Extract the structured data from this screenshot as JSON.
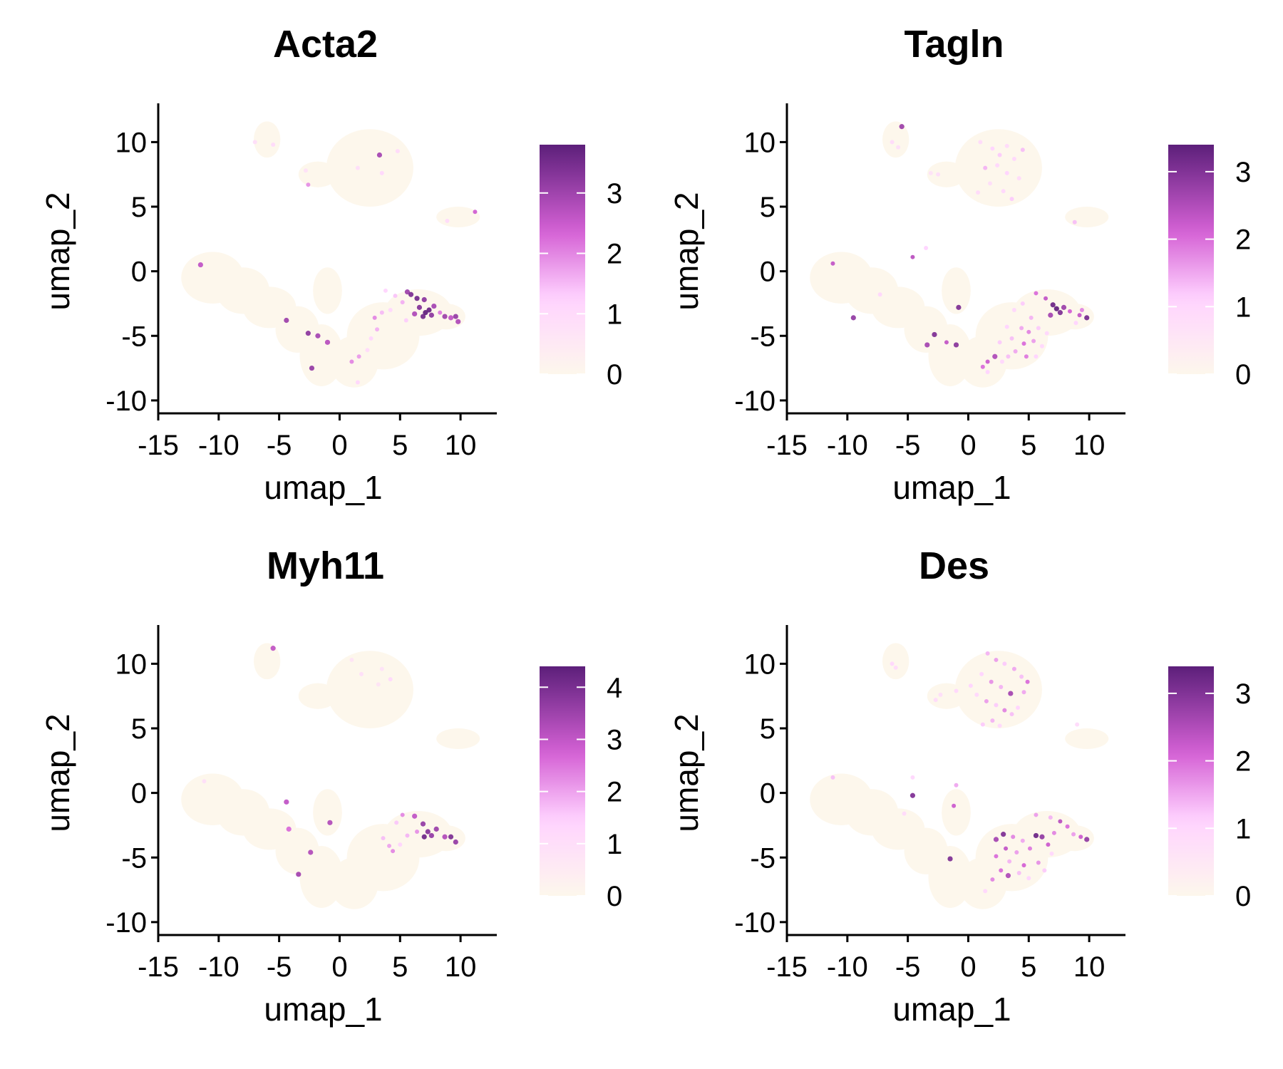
{
  "colors": {
    "background_cells": "#fdf7ec",
    "low": "#fdf7ec",
    "mid_low": "#ffd3ff",
    "mid": "#d561d5",
    "high": "#5c1f7a",
    "axis": "#000000"
  },
  "chart_data": [
    {
      "type": "scatter",
      "title": "Acta2",
      "xlabel": "umap_1",
      "ylabel": "umap_2",
      "xlim": [
        -15,
        13
      ],
      "ylim": [
        -11,
        13
      ],
      "xticks": [
        "-15",
        "-10",
        "-5",
        "0",
        "5",
        "10"
      ],
      "yticks": [
        "-10",
        "-5",
        "0",
        "5",
        "10"
      ],
      "legend": {
        "min": 0,
        "max": 3.8,
        "ticks": [
          "0",
          "1",
          "2",
          "3"
        ],
        "placement": "right"
      },
      "points": [
        {
          "x": -7.0,
          "y": 10.0,
          "v": 0.9
        },
        {
          "x": -5.5,
          "y": 9.8,
          "v": 1.0
        },
        {
          "x": 3.3,
          "y": 9.0,
          "v": 2.9
        },
        {
          "x": 4.8,
          "y": 9.3,
          "v": 1.0
        },
        {
          "x": 1.5,
          "y": 8.0,
          "v": 0.9
        },
        {
          "x": 3.5,
          "y": 7.6,
          "v": 1.1
        },
        {
          "x": -2.8,
          "y": 7.8,
          "v": 0.8
        },
        {
          "x": -2.6,
          "y": 6.7,
          "v": 1.9
        },
        {
          "x": 8.9,
          "y": 3.9,
          "v": 1.0
        },
        {
          "x": 11.2,
          "y": 4.6,
          "v": 2.4
        },
        {
          "x": -11.5,
          "y": 0.5,
          "v": 2.6
        },
        {
          "x": 3.8,
          "y": -1.5,
          "v": 1.2
        },
        {
          "x": 4.6,
          "y": -1.9,
          "v": 1.4
        },
        {
          "x": 5.6,
          "y": -1.6,
          "v": 3.0
        },
        {
          "x": 5.9,
          "y": -1.8,
          "v": 3.4
        },
        {
          "x": 6.4,
          "y": -2.1,
          "v": 3.5
        },
        {
          "x": 7.0,
          "y": -2.2,
          "v": 3.2
        },
        {
          "x": 6.6,
          "y": -2.8,
          "v": 3.3
        },
        {
          "x": 7.1,
          "y": -3.2,
          "v": 3.7
        },
        {
          "x": 7.4,
          "y": -3.0,
          "v": 3.6
        },
        {
          "x": 6.9,
          "y": -3.5,
          "v": 3.5
        },
        {
          "x": 7.6,
          "y": -3.4,
          "v": 3.2
        },
        {
          "x": 6.2,
          "y": -3.3,
          "v": 2.8
        },
        {
          "x": 7.8,
          "y": -2.7,
          "v": 2.9
        },
        {
          "x": 8.3,
          "y": -3.2,
          "v": 2.1
        },
        {
          "x": 8.7,
          "y": -3.5,
          "v": 3.0
        },
        {
          "x": 9.2,
          "y": -3.6,
          "v": 2.6
        },
        {
          "x": 9.6,
          "y": -3.5,
          "v": 3.1
        },
        {
          "x": 9.8,
          "y": -3.9,
          "v": 2.8
        },
        {
          "x": 5.2,
          "y": -2.4,
          "v": 1.6
        },
        {
          "x": 5.5,
          "y": -3.8,
          "v": 1.3
        },
        {
          "x": 4.2,
          "y": -3.0,
          "v": 1.1
        },
        {
          "x": 3.5,
          "y": -3.2,
          "v": 1.5
        },
        {
          "x": 2.9,
          "y": -3.6,
          "v": 2.0
        },
        {
          "x": 3.1,
          "y": -4.5,
          "v": 1.6
        },
        {
          "x": 2.6,
          "y": -5.2,
          "v": 1.2
        },
        {
          "x": 1.6,
          "y": -6.6,
          "v": 1.8
        },
        {
          "x": 1.0,
          "y": -7.0,
          "v": 2.0
        },
        {
          "x": 1.5,
          "y": -8.6,
          "v": 1.1
        },
        {
          "x": 2.3,
          "y": -6.1,
          "v": 1.0
        },
        {
          "x": -4.4,
          "y": -3.8,
          "v": 3.0
        },
        {
          "x": -2.6,
          "y": -4.8,
          "v": 3.2
        },
        {
          "x": -1.8,
          "y": -5.0,
          "v": 2.9
        },
        {
          "x": -1.0,
          "y": -5.5,
          "v": 2.7
        },
        {
          "x": -2.3,
          "y": -7.5,
          "v": 3.1
        }
      ]
    },
    {
      "type": "scatter",
      "title": "Tagln",
      "xlabel": "umap_1",
      "ylabel": "umap_2",
      "xlim": [
        -15,
        13
      ],
      "ylim": [
        -11,
        13
      ],
      "xticks": [
        "-15",
        "-10",
        "-5",
        "0",
        "5",
        "10"
      ],
      "yticks": [
        "-10",
        "-5",
        "0",
        "5",
        "10"
      ],
      "legend": {
        "min": 0,
        "max": 3.4,
        "ticks": [
          "0",
          "1",
          "2",
          "3"
        ],
        "placement": "right"
      },
      "points": [
        {
          "x": -5.5,
          "y": 11.2,
          "v": 2.7
        },
        {
          "x": -6.3,
          "y": 10.0,
          "v": 0.9
        },
        {
          "x": -5.8,
          "y": 9.6,
          "v": 0.8
        },
        {
          "x": 1.0,
          "y": 10.0,
          "v": 0.9
        },
        {
          "x": 2.0,
          "y": 9.5,
          "v": 1.1
        },
        {
          "x": 2.6,
          "y": 9.0,
          "v": 1.2
        },
        {
          "x": 3.2,
          "y": 9.7,
          "v": 0.9
        },
        {
          "x": 3.8,
          "y": 8.7,
          "v": 1.0
        },
        {
          "x": 4.5,
          "y": 9.4,
          "v": 1.3
        },
        {
          "x": 1.4,
          "y": 8.0,
          "v": 1.4
        },
        {
          "x": 2.4,
          "y": 8.2,
          "v": 1.0
        },
        {
          "x": 3.2,
          "y": 7.6,
          "v": 1.1
        },
        {
          "x": 4.2,
          "y": 7.2,
          "v": 0.9
        },
        {
          "x": 1.8,
          "y": 6.8,
          "v": 0.8
        },
        {
          "x": 2.9,
          "y": 6.2,
          "v": 1.0
        },
        {
          "x": 3.6,
          "y": 5.6,
          "v": 1.2
        },
        {
          "x": 0.8,
          "y": 6.1,
          "v": 0.9
        },
        {
          "x": -2.5,
          "y": 7.5,
          "v": 0.8
        },
        {
          "x": -3.1,
          "y": 7.6,
          "v": 0.7
        },
        {
          "x": 8.8,
          "y": 3.8,
          "v": 1.3
        },
        {
          "x": -11.2,
          "y": 0.6,
          "v": 2.3
        },
        {
          "x": -4.6,
          "y": 1.1,
          "v": 2.4
        },
        {
          "x": -3.5,
          "y": 1.8,
          "v": 1.1
        },
        {
          "x": -7.3,
          "y": -1.8,
          "v": 1.0
        },
        {
          "x": -9.5,
          "y": -3.6,
          "v": 2.8
        },
        {
          "x": -0.8,
          "y": -2.8,
          "v": 3.0
        },
        {
          "x": -2.8,
          "y": -4.9,
          "v": 3.0
        },
        {
          "x": -3.4,
          "y": -5.7,
          "v": 2.6
        },
        {
          "x": -1.8,
          "y": -5.5,
          "v": 2.3
        },
        {
          "x": -1.0,
          "y": -5.7,
          "v": 2.9
        },
        {
          "x": 5.6,
          "y": -1.7,
          "v": 2.0
        },
        {
          "x": 6.4,
          "y": -2.1,
          "v": 2.3
        },
        {
          "x": 7.0,
          "y": -2.6,
          "v": 3.2
        },
        {
          "x": 7.3,
          "y": -2.9,
          "v": 3.3
        },
        {
          "x": 7.6,
          "y": -3.2,
          "v": 3.0
        },
        {
          "x": 6.8,
          "y": -3.4,
          "v": 2.6
        },
        {
          "x": 7.9,
          "y": -2.8,
          "v": 2.7
        },
        {
          "x": 8.4,
          "y": -3.1,
          "v": 2.1
        },
        {
          "x": 9.2,
          "y": -3.4,
          "v": 2.3
        },
        {
          "x": 9.8,
          "y": -3.6,
          "v": 3.1
        },
        {
          "x": 9.4,
          "y": -3.0,
          "v": 1.8
        },
        {
          "x": 8.9,
          "y": -4.0,
          "v": 1.1
        },
        {
          "x": 4.5,
          "y": -2.5,
          "v": 1.2
        },
        {
          "x": 3.8,
          "y": -3.0,
          "v": 1.0
        },
        {
          "x": 5.2,
          "y": -3.6,
          "v": 1.4
        },
        {
          "x": 4.4,
          "y": -4.4,
          "v": 1.5
        },
        {
          "x": 5.0,
          "y": -4.7,
          "v": 1.8
        },
        {
          "x": 5.8,
          "y": -4.4,
          "v": 1.2
        },
        {
          "x": 6.5,
          "y": -4.8,
          "v": 1.0
        },
        {
          "x": 3.2,
          "y": -4.3,
          "v": 1.1
        },
        {
          "x": 3.6,
          "y": -5.2,
          "v": 1.3
        },
        {
          "x": 4.6,
          "y": -5.6,
          "v": 2.0
        },
        {
          "x": 5.4,
          "y": -5.4,
          "v": 1.6
        },
        {
          "x": 2.6,
          "y": -5.5,
          "v": 1.2
        },
        {
          "x": 3.9,
          "y": -6.2,
          "v": 1.5
        },
        {
          "x": 4.8,
          "y": -6.6,
          "v": 1.9
        },
        {
          "x": 5.6,
          "y": -6.6,
          "v": 1.1
        },
        {
          "x": 2.2,
          "y": -6.6,
          "v": 2.5
        },
        {
          "x": 1.6,
          "y": -7.0,
          "v": 2.2
        },
        {
          "x": 1.2,
          "y": -7.4,
          "v": 2.0
        },
        {
          "x": 1.6,
          "y": -7.8,
          "v": 1.1
        },
        {
          "x": 2.8,
          "y": -7.0,
          "v": 1.0
        },
        {
          "x": 3.3,
          "y": -6.6,
          "v": 1.3
        },
        {
          "x": 6.1,
          "y": -5.8,
          "v": 1.0
        }
      ]
    },
    {
      "type": "scatter",
      "title": "Myh11",
      "xlabel": "umap_1",
      "ylabel": "umap_2",
      "xlim": [
        -15,
        13
      ],
      "ylim": [
        -11,
        13
      ],
      "xticks": [
        "-15",
        "-10",
        "-5",
        "0",
        "5",
        "10"
      ],
      "yticks": [
        "-10",
        "-5",
        "0",
        "5",
        "10"
      ],
      "legend": {
        "min": 0,
        "max": 4.4,
        "ticks": [
          "0",
          "1",
          "2",
          "3",
          "4"
        ],
        "placement": "right"
      },
      "points": [
        {
          "x": -5.5,
          "y": 11.2,
          "v": 3.0
        },
        {
          "x": 1.0,
          "y": 10.3,
          "v": 0.8
        },
        {
          "x": 1.8,
          "y": 9.2,
          "v": 1.0
        },
        {
          "x": 3.5,
          "y": 9.6,
          "v": 0.9
        },
        {
          "x": 4.2,
          "y": 8.8,
          "v": 1.2
        },
        {
          "x": 3.2,
          "y": 8.4,
          "v": 0.8
        },
        {
          "x": -11.2,
          "y": 0.9,
          "v": 1.0
        },
        {
          "x": -4.4,
          "y": -0.7,
          "v": 3.0
        },
        {
          "x": -0.8,
          "y": -2.3,
          "v": 3.2
        },
        {
          "x": -4.2,
          "y": -2.8,
          "v": 2.6
        },
        {
          "x": -2.4,
          "y": -4.6,
          "v": 3.2
        },
        {
          "x": -3.4,
          "y": -6.3,
          "v": 3.4
        },
        {
          "x": 5.2,
          "y": -1.7,
          "v": 2.3
        },
        {
          "x": 6.2,
          "y": -1.8,
          "v": 3.0
        },
        {
          "x": 6.9,
          "y": -2.4,
          "v": 3.6
        },
        {
          "x": 7.3,
          "y": -3.0,
          "v": 3.8
        },
        {
          "x": 7.0,
          "y": -3.4,
          "v": 4.1
        },
        {
          "x": 7.6,
          "y": -3.3,
          "v": 3.6
        },
        {
          "x": 8.0,
          "y": -2.8,
          "v": 3.5
        },
        {
          "x": 8.7,
          "y": -3.4,
          "v": 3.2
        },
        {
          "x": 9.2,
          "y": -3.4,
          "v": 3.9
        },
        {
          "x": 9.6,
          "y": -3.8,
          "v": 3.6
        },
        {
          "x": 6.4,
          "y": -3.0,
          "v": 2.2
        },
        {
          "x": 5.6,
          "y": -3.3,
          "v": 1.8
        },
        {
          "x": 4.7,
          "y": -2.3,
          "v": 1.6
        },
        {
          "x": 3.6,
          "y": -3.5,
          "v": 1.7
        },
        {
          "x": 4.1,
          "y": -4.1,
          "v": 2.0
        },
        {
          "x": 4.4,
          "y": -4.5,
          "v": 2.3
        },
        {
          "x": 5.0,
          "y": -4.0,
          "v": 1.4
        }
      ]
    },
    {
      "type": "scatter",
      "title": "Des",
      "xlabel": "umap_1",
      "ylabel": "umap_2",
      "xlim": [
        -15,
        13
      ],
      "ylim": [
        -11,
        13
      ],
      "xticks": [
        "-15",
        "-10",
        "-5",
        "0",
        "5",
        "10"
      ],
      "yticks": [
        "-10",
        "-5",
        "0",
        "5",
        "10"
      ],
      "legend": {
        "min": 0,
        "max": 3.4,
        "ticks": [
          "0",
          "1",
          "2",
          "3"
        ],
        "placement": "right"
      },
      "points": [
        {
          "x": -6.3,
          "y": 10.0,
          "v": 1.0
        },
        {
          "x": -6.0,
          "y": 9.7,
          "v": 0.9
        },
        {
          "x": 1.6,
          "y": 10.8,
          "v": 1.4
        },
        {
          "x": 2.3,
          "y": 10.3,
          "v": 1.6
        },
        {
          "x": 3.0,
          "y": 10.0,
          "v": 1.2
        },
        {
          "x": 3.8,
          "y": 9.6,
          "v": 1.5
        },
        {
          "x": 4.4,
          "y": 9.0,
          "v": 1.3
        },
        {
          "x": 4.9,
          "y": 8.6,
          "v": 2.0
        },
        {
          "x": 1.1,
          "y": 9.2,
          "v": 1.1
        },
        {
          "x": 1.9,
          "y": 8.6,
          "v": 1.7
        },
        {
          "x": 2.7,
          "y": 8.2,
          "v": 1.4
        },
        {
          "x": 3.5,
          "y": 7.7,
          "v": 2.6
        },
        {
          "x": 4.6,
          "y": 7.8,
          "v": 1.5
        },
        {
          "x": 0.7,
          "y": 7.6,
          "v": 1.0
        },
        {
          "x": 1.5,
          "y": 7.1,
          "v": 1.6
        },
        {
          "x": 2.3,
          "y": 6.8,
          "v": 1.2
        },
        {
          "x": 3.0,
          "y": 6.4,
          "v": 1.8
        },
        {
          "x": 3.6,
          "y": 6.1,
          "v": 1.3
        },
        {
          "x": 4.1,
          "y": 6.6,
          "v": 1.1
        },
        {
          "x": 2.0,
          "y": 5.6,
          "v": 1.4
        },
        {
          "x": 1.2,
          "y": 5.3,
          "v": 1.2
        },
        {
          "x": 2.6,
          "y": 5.2,
          "v": 1.0
        },
        {
          "x": -1.0,
          "y": 7.9,
          "v": 1.0
        },
        {
          "x": -2.3,
          "y": 7.6,
          "v": 0.8
        },
        {
          "x": -2.7,
          "y": 7.2,
          "v": 0.9
        },
        {
          "x": 0.2,
          "y": 8.3,
          "v": 1.1
        },
        {
          "x": 9.0,
          "y": 5.3,
          "v": 0.9
        },
        {
          "x": -11.2,
          "y": 1.2,
          "v": 1.3
        },
        {
          "x": -4.6,
          "y": 1.2,
          "v": 1.0
        },
        {
          "x": -4.6,
          "y": -0.2,
          "v": 3.0
        },
        {
          "x": -1.0,
          "y": 0.6,
          "v": 1.5
        },
        {
          "x": -1.2,
          "y": -1.0,
          "v": 2.2
        },
        {
          "x": -5.3,
          "y": -1.6,
          "v": 0.9
        },
        {
          "x": -1.5,
          "y": -5.1,
          "v": 3.0
        },
        {
          "x": 5.6,
          "y": -1.7,
          "v": 1.6
        },
        {
          "x": 6.8,
          "y": -1.9,
          "v": 1.4
        },
        {
          "x": 7.6,
          "y": -2.2,
          "v": 2.4
        },
        {
          "x": 8.2,
          "y": -2.6,
          "v": 2.0
        },
        {
          "x": 9.3,
          "y": -3.4,
          "v": 2.2
        },
        {
          "x": 9.8,
          "y": -3.6,
          "v": 2.8
        },
        {
          "x": 8.7,
          "y": -3.2,
          "v": 1.6
        },
        {
          "x": 2.9,
          "y": -3.2,
          "v": 3.0
        },
        {
          "x": 2.3,
          "y": -3.6,
          "v": 2.6
        },
        {
          "x": 3.7,
          "y": -3.4,
          "v": 1.8
        },
        {
          "x": 4.5,
          "y": -3.7,
          "v": 1.5
        },
        {
          "x": 5.6,
          "y": -3.3,
          "v": 3.2
        },
        {
          "x": 6.1,
          "y": -3.4,
          "v": 2.8
        },
        {
          "x": 6.6,
          "y": -4.0,
          "v": 2.2
        },
        {
          "x": 5.1,
          "y": -4.3,
          "v": 1.9
        },
        {
          "x": 4.0,
          "y": -4.6,
          "v": 1.6
        },
        {
          "x": 3.1,
          "y": -4.3,
          "v": 2.3
        },
        {
          "x": 2.3,
          "y": -4.9,
          "v": 2.0
        },
        {
          "x": 3.4,
          "y": -5.3,
          "v": 1.4
        },
        {
          "x": 4.6,
          "y": -5.6,
          "v": 2.1
        },
        {
          "x": 5.8,
          "y": -5.4,
          "v": 1.7
        },
        {
          "x": 6.3,
          "y": -6.0,
          "v": 1.2
        },
        {
          "x": 2.7,
          "y": -6.0,
          "v": 2.0
        },
        {
          "x": 3.3,
          "y": -6.4,
          "v": 2.5
        },
        {
          "x": 4.2,
          "y": -6.2,
          "v": 1.3
        },
        {
          "x": 5.0,
          "y": -6.6,
          "v": 1.1
        },
        {
          "x": 2.0,
          "y": -6.7,
          "v": 1.8
        },
        {
          "x": 1.4,
          "y": -7.6,
          "v": 1.0
        },
        {
          "x": 6.9,
          "y": -4.7,
          "v": 1.0
        },
        {
          "x": 7.1,
          "y": -3.1,
          "v": 1.8
        }
      ]
    }
  ]
}
